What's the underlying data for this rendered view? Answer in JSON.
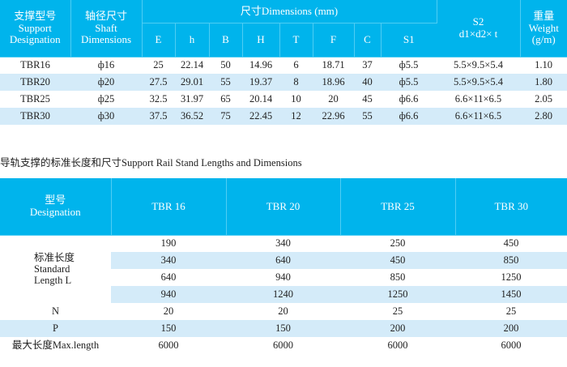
{
  "dimensions_table": {
    "headers": {
      "support": [
        "支撑型号",
        "Support",
        "Designation"
      ],
      "shaft": [
        "轴径尺寸",
        "Shaft",
        "Dimensions"
      ],
      "dimensions": "尺寸Dimensions (mm)",
      "sub": [
        "E",
        "h",
        "B",
        "H",
        "T",
        "F",
        "C",
        "S1"
      ],
      "s2": [
        "S2",
        "d1×d2× t"
      ],
      "weight": [
        "重量",
        "Weight",
        "(g/m)"
      ]
    },
    "rows": [
      [
        "TBR16",
        "ф16",
        "25",
        "22.14",
        "50",
        "14.96",
        "6",
        "18.71",
        "37",
        "ф5.5",
        "5.5×9.5×5.4",
        "1.10"
      ],
      [
        "TBR20",
        "ф20",
        "27.5",
        "29.01",
        "55",
        "19.37",
        "8",
        "18.96",
        "40",
        "ф5.5",
        "5.5×9.5×5.4",
        "1.80"
      ],
      [
        "TBR25",
        "ф25",
        "32.5",
        "31.97",
        "65",
        "20.14",
        "10",
        "20",
        "45",
        "ф6.6",
        "6.6×11×6.5",
        "2.05"
      ],
      [
        "TBR30",
        "ф30",
        "37.5",
        "36.52",
        "75",
        "22.45",
        "12",
        "22.96",
        "55",
        "ф6.6",
        "6.6×11×6.5",
        "2.80"
      ]
    ]
  },
  "section_title": "导轨支撑的标准长度和尺寸Support Rail Stand Lengths and Dimensions",
  "lengths_table": {
    "designation": [
      "型号",
      "Designation"
    ],
    "models": [
      "TBR 16",
      "TBR 20",
      "TBR 25",
      "TBR 30"
    ],
    "standard_length_label": [
      "标准长度",
      "Standard",
      "Length L"
    ],
    "standard_lengths": [
      [
        "190",
        "340",
        "250",
        "450"
      ],
      [
        "340",
        "640",
        "450",
        "850"
      ],
      [
        "640",
        "940",
        "850",
        "1250"
      ],
      [
        "940",
        "1240",
        "1250",
        "1450"
      ]
    ],
    "n_label": "N",
    "n": [
      "20",
      "20",
      "25",
      "25"
    ],
    "p_label": "P",
    "p": [
      "150",
      "150",
      "200",
      "200"
    ],
    "max_label": "最大长度Max.length",
    "max": [
      "6000",
      "6000",
      "6000",
      "6000"
    ]
  },
  "colors": {
    "header": "#00b4ec",
    "stripe": "#d4ebf9"
  }
}
